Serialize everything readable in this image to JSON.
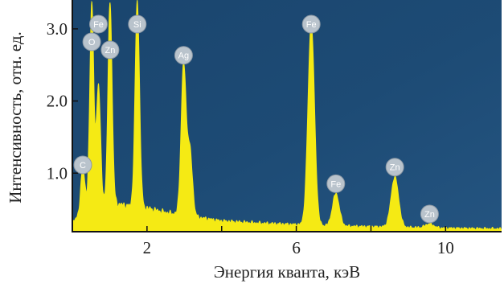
{
  "chart_data": {
    "type": "area",
    "title": "",
    "xlabel": "Энергия кванта, кэВ",
    "ylabel": "Интенсивность, отн. ед.",
    "xlim": [
      0,
      11.5
    ],
    "ylim": [
      0.2,
      3.4
    ],
    "x_ticks": [
      {
        "value": 2,
        "label": "2"
      },
      {
        "value": 4,
        "label": ""
      },
      {
        "value": 6,
        "label": "6"
      },
      {
        "value": 8,
        "label": ""
      },
      {
        "value": 10,
        "label": "10"
      }
    ],
    "y_ticks": [
      {
        "value": 1.0,
        "label": "1.0"
      },
      {
        "value": 2.0,
        "label": "2.0"
      },
      {
        "value": 3.0,
        "label": "3.0"
      }
    ],
    "background_color": "#1d4a73",
    "spectrum_color": "#f5ea14",
    "badge_color": "#b9c3cc",
    "badge_text_color": "#ffffff",
    "grid": false,
    "legend": "none",
    "baseline": [
      [
        0.0,
        0.3
      ],
      [
        0.3,
        0.55
      ],
      [
        0.6,
        0.62
      ],
      [
        1.0,
        0.6
      ],
      [
        1.5,
        0.55
      ],
      [
        2.0,
        0.52
      ],
      [
        2.5,
        0.46
      ],
      [
        3.0,
        0.42
      ],
      [
        3.5,
        0.38
      ],
      [
        4.0,
        0.34
      ],
      [
        5.0,
        0.31
      ],
      [
        6.0,
        0.29
      ],
      [
        7.0,
        0.27
      ],
      [
        8.0,
        0.26
      ],
      [
        9.0,
        0.25
      ],
      [
        10.0,
        0.24
      ],
      [
        11.5,
        0.23
      ]
    ],
    "peaks": [
      {
        "element": "C",
        "energy": 0.28,
        "height": 1.1,
        "badge": true
      },
      {
        "element": "O",
        "energy": 0.52,
        "height": 3.4,
        "badge": true
      },
      {
        "element": "Fe",
        "energy": 0.7,
        "height": 2.25,
        "badge": true
      },
      {
        "element": "Zn",
        "energy": 1.01,
        "height": 3.4,
        "badge": true
      },
      {
        "element": "Si",
        "energy": 1.74,
        "height": 3.4,
        "badge": true
      },
      {
        "element": "Ag",
        "energy": 2.98,
        "height": 2.5,
        "badge": true
      },
      {
        "element": "Ag",
        "energy": 3.15,
        "height": 1.3,
        "badge": false
      },
      {
        "element": "Fe",
        "energy": 6.4,
        "height": 3.1,
        "badge": true
      },
      {
        "element": "Fe",
        "energy": 7.06,
        "height": 0.72,
        "badge": true
      },
      {
        "element": "Zn",
        "energy": 8.64,
        "height": 0.95,
        "badge": true
      },
      {
        "element": "Zn",
        "energy": 9.57,
        "height": 0.3,
        "badge": true
      }
    ]
  }
}
